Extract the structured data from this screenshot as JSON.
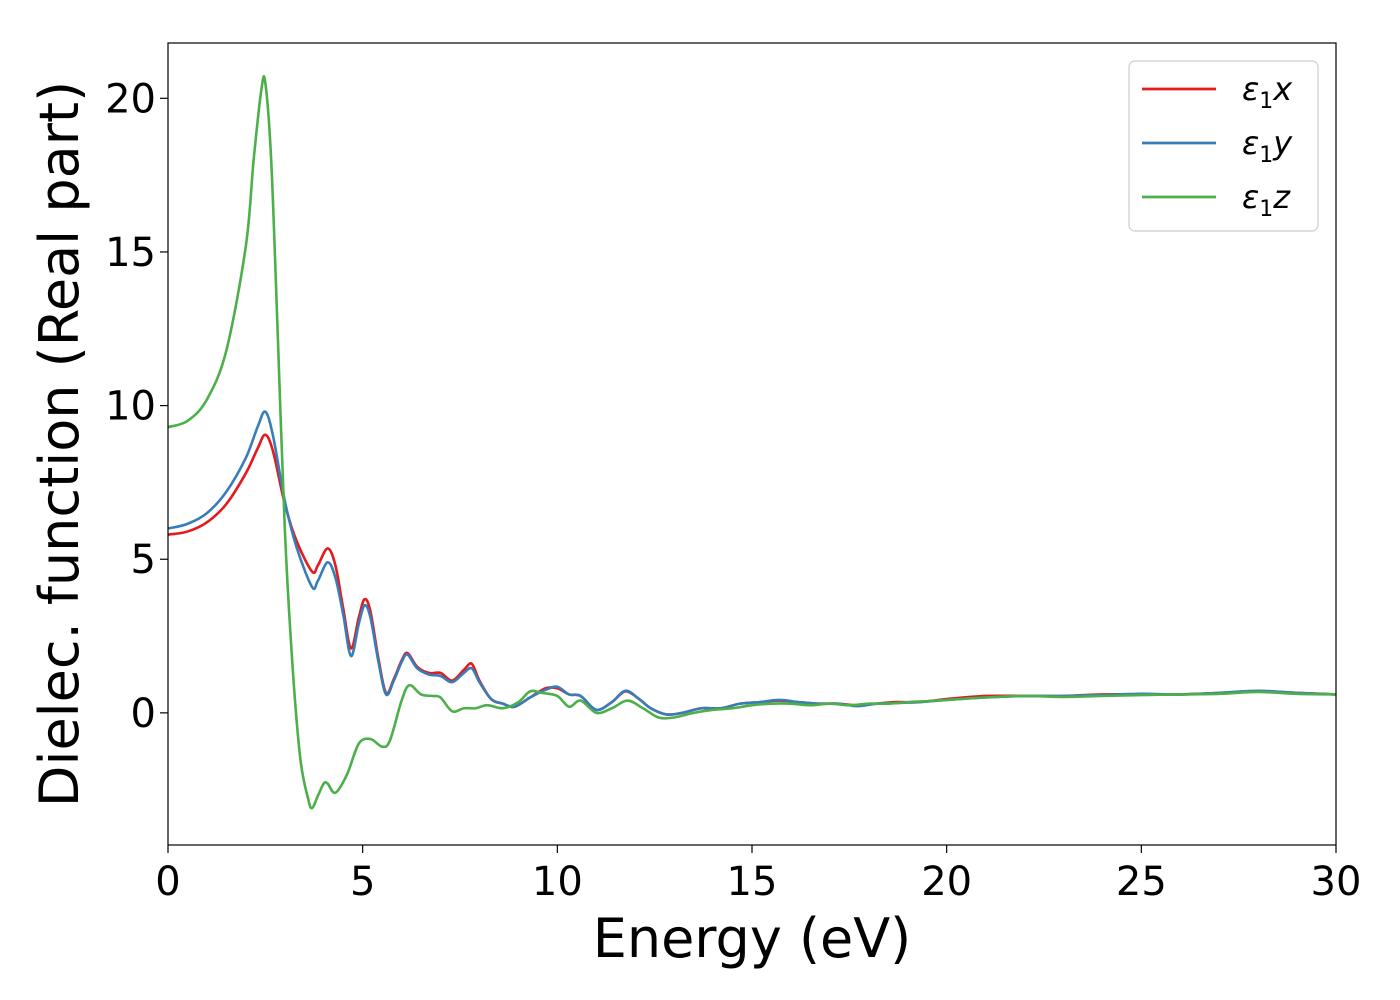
{
  "chart_data": {
    "type": "line",
    "xlabel": "Energy (eV)",
    "ylabel": "Dielec. function (Real part)",
    "xlim": [
      0,
      30
    ],
    "ylim": [
      -4.3,
      21.8
    ],
    "xticks": [
      "0",
      "5",
      "10",
      "15",
      "20",
      "25",
      "30"
    ],
    "yticks": [
      "0",
      "5",
      "10",
      "15",
      "20"
    ],
    "grid": false,
    "legend_position": "top-right",
    "series": [
      {
        "name": "ε₁x",
        "legend_main": "ε",
        "legend_sub": "1",
        "legend_tail": "x",
        "color": "#e41a1c",
        "x": [
          0,
          0.5,
          1,
          1.5,
          2,
          2.3,
          2.5,
          2.7,
          3,
          3.3,
          3.7,
          3.85,
          4.1,
          4.3,
          4.5,
          4.7,
          4.9,
          5.05,
          5.2,
          5.4,
          5.6,
          5.8,
          6,
          6.15,
          6.4,
          6.7,
          7,
          7.3,
          7.6,
          7.8,
          8,
          8.3,
          8.6,
          8.9,
          9.3,
          9.7,
          10,
          10.3,
          10.6,
          11,
          11.4,
          11.75,
          12.1,
          12.4,
          12.8,
          13.2,
          13.7,
          14.2,
          14.7,
          15.2,
          15.7,
          16.2,
          16.7,
          17.2,
          17.7,
          18.2,
          18.7,
          19.3,
          20,
          21,
          22,
          23,
          24,
          25,
          26,
          27,
          28,
          29,
          30
        ],
        "values": [
          5.8,
          5.9,
          6.2,
          6.8,
          7.8,
          8.6,
          9.05,
          8.5,
          6.8,
          5.6,
          4.6,
          4.8,
          5.35,
          4.8,
          3.4,
          2.1,
          3.1,
          3.7,
          3.3,
          1.8,
          0.65,
          1.1,
          1.7,
          1.95,
          1.5,
          1.3,
          1.3,
          1.05,
          1.4,
          1.6,
          1.05,
          0.45,
          0.3,
          0.2,
          0.5,
          0.8,
          0.8,
          0.6,
          0.55,
          0.1,
          0.35,
          0.7,
          0.45,
          0.15,
          -0.05,
          0.0,
          0.15,
          0.15,
          0.3,
          0.35,
          0.4,
          0.35,
          0.3,
          0.3,
          0.25,
          0.3,
          0.35,
          0.35,
          0.45,
          0.55,
          0.55,
          0.55,
          0.6,
          0.6,
          0.6,
          0.65,
          0.7,
          0.65,
          0.6
        ]
      },
      {
        "name": "ε₁y",
        "legend_main": "ε",
        "legend_sub": "1",
        "legend_tail": "y",
        "color": "#377eb8",
        "x": [
          0,
          0.5,
          1,
          1.5,
          2,
          2.3,
          2.5,
          2.7,
          3,
          3.3,
          3.7,
          3.85,
          4.1,
          4.3,
          4.5,
          4.7,
          4.9,
          5.05,
          5.2,
          5.4,
          5.6,
          5.8,
          6,
          6.15,
          6.4,
          6.7,
          7,
          7.3,
          7.6,
          7.8,
          8,
          8.3,
          8.6,
          8.9,
          9.3,
          9.7,
          10,
          10.3,
          10.6,
          11,
          11.4,
          11.75,
          12.1,
          12.4,
          12.8,
          13.2,
          13.7,
          14.2,
          14.7,
          15.2,
          15.7,
          16.2,
          16.7,
          17.2,
          17.7,
          18.2,
          18.7,
          19.3,
          20,
          21,
          22,
          23,
          24,
          25,
          26,
          27,
          28,
          29,
          30
        ],
        "values": [
          6.0,
          6.15,
          6.5,
          7.2,
          8.3,
          9.3,
          9.8,
          9.0,
          6.9,
          5.4,
          4.1,
          4.3,
          4.9,
          4.4,
          3.2,
          1.85,
          2.9,
          3.5,
          3.1,
          1.7,
          0.6,
          1.05,
          1.65,
          1.9,
          1.45,
          1.25,
          1.2,
          1.0,
          1.3,
          1.45,
          1.0,
          0.45,
          0.3,
          0.2,
          0.5,
          0.75,
          0.85,
          0.6,
          0.55,
          0.1,
          0.35,
          0.72,
          0.45,
          0.15,
          -0.05,
          0.0,
          0.15,
          0.15,
          0.3,
          0.35,
          0.42,
          0.35,
          0.3,
          0.3,
          0.22,
          0.3,
          0.32,
          0.35,
          0.42,
          0.5,
          0.55,
          0.55,
          0.58,
          0.62,
          0.6,
          0.65,
          0.72,
          0.65,
          0.6
        ]
      },
      {
        "name": "ε₁z",
        "legend_main": "ε",
        "legend_sub": "1",
        "legend_tail": "z",
        "color": "#4daf4a",
        "x": [
          0,
          0.5,
          1,
          1.5,
          2,
          2.2,
          2.4,
          2.5,
          2.65,
          2.8,
          3,
          3.2,
          3.4,
          3.6,
          3.7,
          3.85,
          4.0,
          4.1,
          4.3,
          4.6,
          4.9,
          5.2,
          5.5,
          5.7,
          6.0,
          6.2,
          6.5,
          6.8,
          7.0,
          7.3,
          7.6,
          7.9,
          8.2,
          8.6,
          9.0,
          9.3,
          9.6,
          10,
          10.3,
          10.6,
          11,
          11.4,
          11.8,
          12.2,
          12.6,
          13.0,
          13.5,
          14,
          14.5,
          15,
          15.5,
          16,
          16.5,
          17,
          17.5,
          18,
          18.5,
          19,
          19.5,
          20,
          21,
          22,
          23,
          24,
          25,
          26,
          27,
          28,
          29,
          30
        ],
        "values": [
          9.3,
          9.5,
          10.2,
          11.8,
          15.2,
          18.0,
          20.3,
          20.5,
          18.0,
          13.0,
          6.0,
          1.5,
          -1.5,
          -2.8,
          -3.1,
          -2.7,
          -2.3,
          -2.3,
          -2.6,
          -2.0,
          -1.0,
          -0.85,
          -1.1,
          -0.9,
          0.4,
          0.9,
          0.6,
          0.55,
          0.5,
          0.05,
          0.15,
          0.15,
          0.25,
          0.15,
          0.35,
          0.7,
          0.65,
          0.55,
          0.2,
          0.4,
          0.0,
          0.15,
          0.4,
          0.15,
          -0.15,
          -0.15,
          0.0,
          0.1,
          0.15,
          0.25,
          0.3,
          0.3,
          0.25,
          0.3,
          0.25,
          0.3,
          0.3,
          0.35,
          0.38,
          0.42,
          0.5,
          0.55,
          0.52,
          0.55,
          0.58,
          0.6,
          0.62,
          0.68,
          0.62,
          0.6
        ]
      }
    ]
  }
}
